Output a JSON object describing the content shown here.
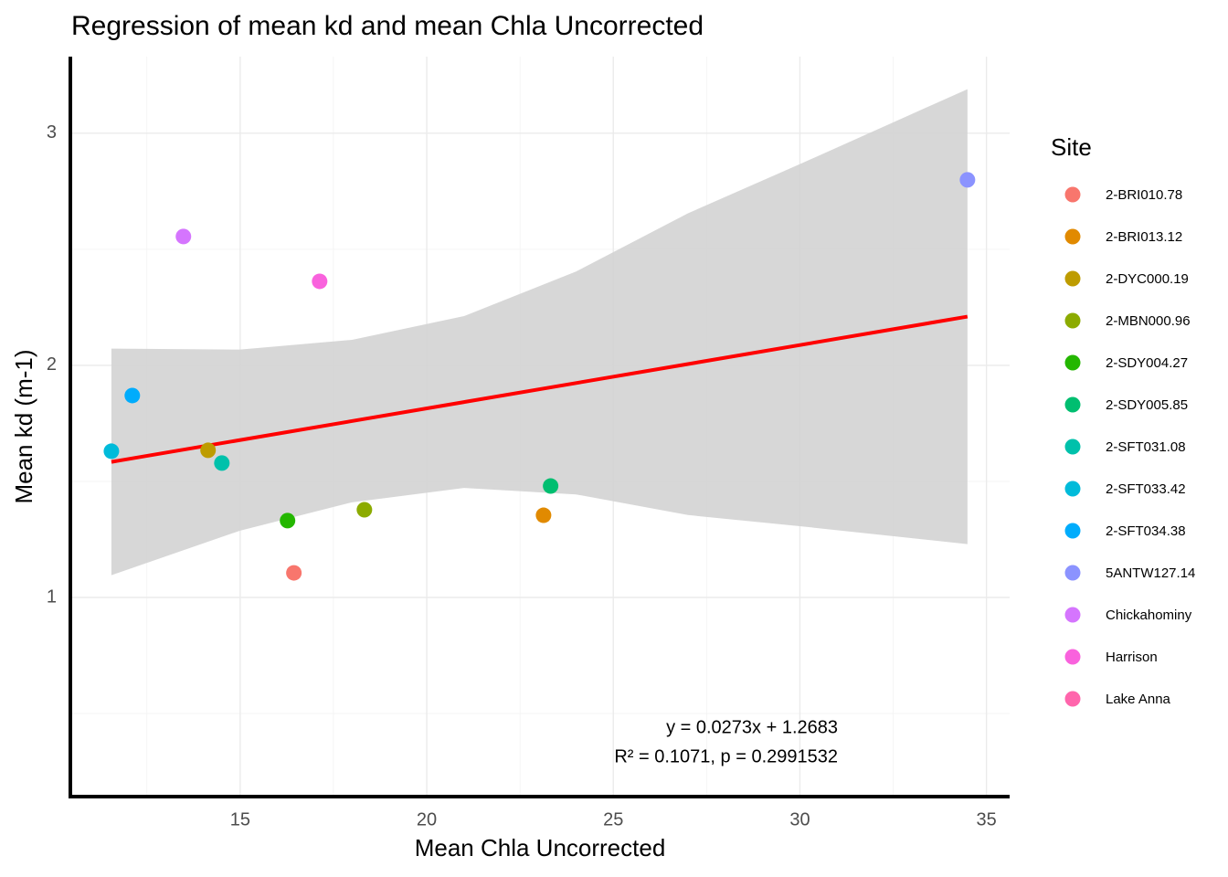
{
  "chart_data": {
    "type": "scatter",
    "title": "Regression of mean kd and mean Chla Uncorrected",
    "x_label": "Mean Chla Uncorrected",
    "y_label": "Mean kd (m-1)",
    "legend_title": "Site",
    "xlim": [
      10.45,
      35.62
    ],
    "ylim": [
      0.142,
      3.33
    ],
    "xticks": [
      15,
      20,
      25,
      30,
      35
    ],
    "yticks": [
      1,
      2,
      3
    ],
    "x_minor_ticks": [
      12.5,
      17.5,
      22.5,
      27.5,
      32.5
    ],
    "y_minor_ticks": [
      0.5,
      1.5,
      2.5
    ],
    "grid": true,
    "annotations": [
      "y = 0.0273x + 1.2683",
      "R² = 0.1071, p = 0.2991532"
    ],
    "fit": {
      "color": "#ff0000",
      "x": [
        11.55,
        34.49
      ],
      "y": [
        1.584,
        2.21
      ]
    },
    "band": {
      "color": "#d3d3d3",
      "x": [
        11.55,
        15,
        18,
        21,
        24,
        27,
        30,
        34.49
      ],
      "lower": [
        1.096,
        1.288,
        1.41,
        1.472,
        1.444,
        1.355,
        1.307,
        1.23
      ],
      "upper": [
        2.072,
        2.068,
        2.11,
        2.212,
        2.404,
        2.655,
        2.867,
        3.19
      ]
    },
    "series": [
      {
        "name": "2-BRI010.78",
        "color": "#F8766D",
        "x": [
          16.44
        ],
        "values": [
          1.106
        ]
      },
      {
        "name": "2-BRI013.12",
        "color": "#E18A00",
        "x": [
          23.13
        ],
        "values": [
          1.354
        ]
      },
      {
        "name": "2-DYC000.19",
        "color": "#BE9C00",
        "x": [
          14.14
        ],
        "values": [
          1.634
        ]
      },
      {
        "name": "2-MBN000.96",
        "color": "#8CAB00",
        "x": [
          18.33
        ],
        "values": [
          1.378
        ]
      },
      {
        "name": "2-SDY004.27",
        "color": "#24B700",
        "x": [
          16.27
        ],
        "values": [
          1.331
        ]
      },
      {
        "name": "2-SDY005.85",
        "color": "#00BE70",
        "x": [
          23.32
        ],
        "values": [
          1.48
        ]
      },
      {
        "name": "2-SFT031.08",
        "color": "#00C1AB",
        "x": [
          14.51
        ],
        "values": [
          1.579
        ]
      },
      {
        "name": "2-SFT033.42",
        "color": "#00BBDA",
        "x": [
          11.55
        ],
        "values": [
          1.63
        ]
      },
      {
        "name": "2-SFT034.38",
        "color": "#00ACFC",
        "x": [
          12.11
        ],
        "values": [
          1.87
        ]
      },
      {
        "name": "5ANTW127.14",
        "color": "#8B93FF",
        "x": [
          34.49
        ],
        "values": [
          2.799
        ]
      },
      {
        "name": "Chickahominy",
        "color": "#D575FE",
        "x": [
          13.48
        ],
        "values": [
          2.555
        ]
      },
      {
        "name": "Harrison",
        "color": "#F962DD",
        "x": [
          17.13
        ],
        "values": [
          2.362
        ]
      },
      {
        "name": "Lake Anna",
        "color": "#FF65AC",
        "x": [],
        "values": []
      }
    ]
  }
}
